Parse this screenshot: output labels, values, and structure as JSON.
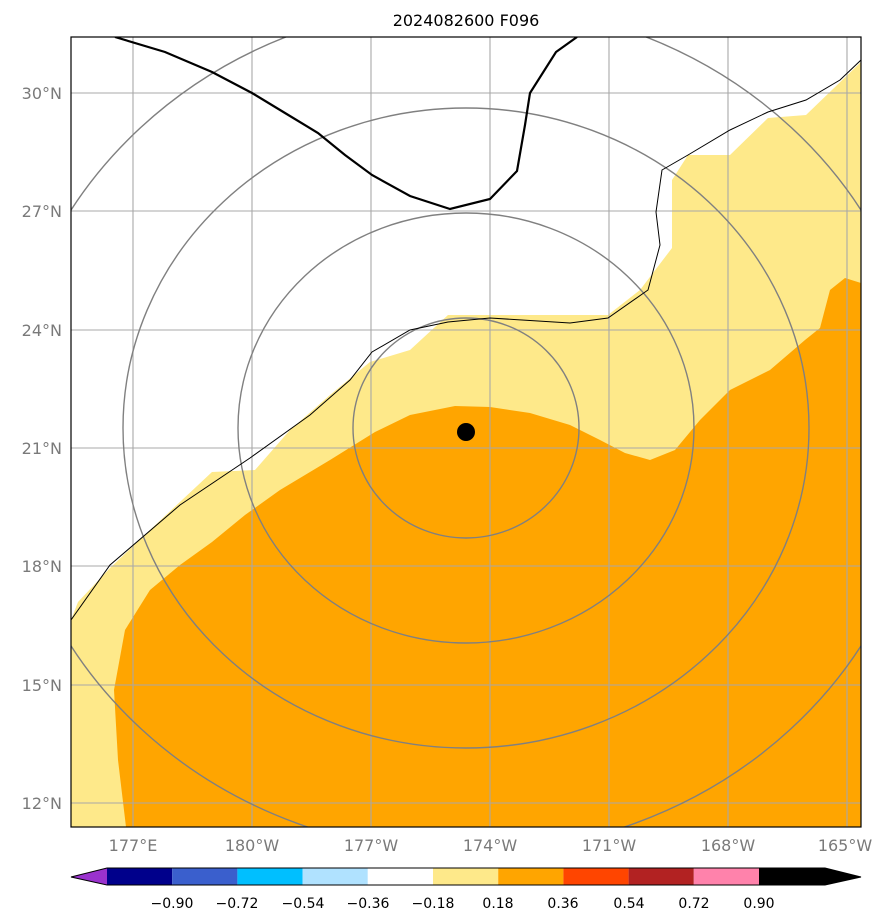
{
  "title": "2024082600 F096",
  "map": {
    "lat_labels": [
      "30°N",
      "27°N",
      "24°N",
      "21°N",
      "18°N",
      "15°N",
      "12°N"
    ],
    "lon_labels": [
      "177°E",
      "180°W",
      "177°W",
      "174°W",
      "171°W",
      "168°W",
      "165°W"
    ],
    "fill_colors": {
      "light_yellow": "#fee98a",
      "orange": "#ffa500"
    },
    "contour_color": "#808080",
    "front_color": "#000000",
    "center_marker": "storm-center-dot"
  },
  "colorbar": {
    "colors": [
      "#9a32cd",
      "#00008b",
      "#3a5fcd",
      "#00bfff",
      "#b0e2ff",
      "#ffffff",
      "#fee98a",
      "#ffa500",
      "#ff4500",
      "#b22222",
      "#ff82ab"
    ],
    "labels": [
      "−0.90",
      "−0.72",
      "−0.54",
      "−0.36",
      "−0.18",
      "0.18",
      "0.36",
      "0.54",
      "0.72",
      "0.90"
    ]
  }
}
